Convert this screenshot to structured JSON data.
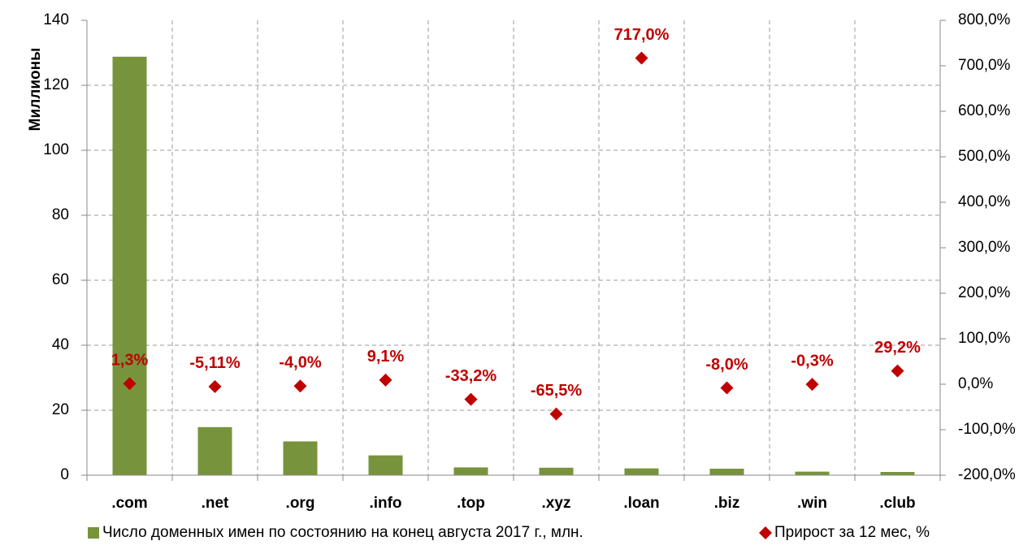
{
  "chart_data": {
    "type": "bar",
    "y_label": "Миллионы",
    "categories": [
      ".com",
      ".net",
      ".org",
      ".info",
      ".top",
      ".xyz",
      ".loan",
      ".biz",
      ".win",
      ".club"
    ],
    "series": [
      {
        "name": "Число доменных имен по состоянию на конец августа 2017 г., млн.",
        "type": "bar",
        "color": "#77933c",
        "values": [
          128.8,
          14.8,
          10.4,
          6.1,
          2.4,
          2.3,
          2.1,
          2.0,
          1.1,
          1.0
        ]
      },
      {
        "name": "Прирост за 12 мес, %",
        "type": "scatter",
        "axis": "y2",
        "color": "#c00000",
        "values": [
          1.3,
          -5.11,
          -4.0,
          9.1,
          -33.2,
          -65.5,
          717.0,
          -8.0,
          -0.3,
          29.2
        ],
        "value_labels": [
          "1,3%",
          "-5,11%",
          "-4,0%",
          "9,1%",
          "-33,2%",
          "-65,5%",
          "717,0%",
          "-8,0%",
          "-0,3%",
          "29,2%"
        ]
      }
    ],
    "ylim": [
      0,
      140
    ],
    "yticks": [
      0,
      20,
      40,
      60,
      80,
      100,
      120,
      140
    ],
    "y2lim": [
      -200,
      800
    ],
    "y2ticks": [
      {
        "value": -200,
        "label": "-200,0%"
      },
      {
        "value": -100,
        "label": "-100,0%"
      },
      {
        "value": 0,
        "label": "0,0%"
      },
      {
        "value": 100,
        "label": "100,0%"
      },
      {
        "value": 200,
        "label": "200,0%"
      },
      {
        "value": 300,
        "label": "300,0%"
      },
      {
        "value": 400,
        "label": "400,0%"
      },
      {
        "value": 500,
        "label": "500,0%"
      },
      {
        "value": 600,
        "label": "600,0%"
      },
      {
        "value": 700,
        "label": "700,0%"
      },
      {
        "value": 800,
        "label": "800,0%"
      }
    ],
    "grid": true,
    "legend": "bottom"
  }
}
